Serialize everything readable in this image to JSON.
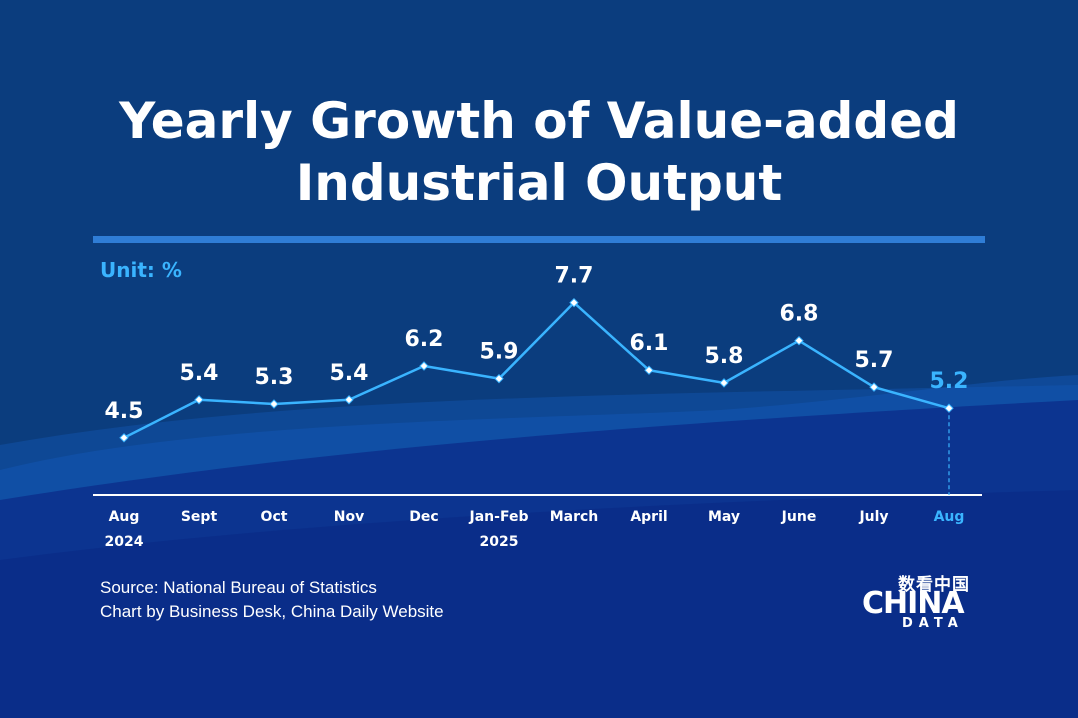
{
  "colors": {
    "background": "#0b3d7e",
    "line": "#3ab4ff",
    "highlight": "#3ab4ff",
    "text": "#ffffff"
  },
  "title_lines": [
    "Yearly Growth of Value-added",
    "Industrial Output"
  ],
  "footer": {
    "source": "Source: National Bureau of Statistics",
    "credit": "Chart by Business Desk, China Daily Website"
  },
  "logo": {
    "chinese": "数看中国",
    "main": "CHINA",
    "sub": "DATA"
  },
  "chart_data": {
    "type": "line",
    "title": "Yearly Growth of Value-added Industrial Output",
    "unit_label": "Unit: %",
    "categories": [
      [
        "Aug",
        "2024"
      ],
      [
        "Sept"
      ],
      [
        "Oct"
      ],
      [
        "Nov"
      ],
      [
        "Dec"
      ],
      [
        "Jan-Feb",
        "2025"
      ],
      [
        "March"
      ],
      [
        "April"
      ],
      [
        "May"
      ],
      [
        "June"
      ],
      [
        "July"
      ],
      [
        "Aug"
      ]
    ],
    "values": [
      4.5,
      5.4,
      5.3,
      5.4,
      6.2,
      5.9,
      7.7,
      6.1,
      5.8,
      6.8,
      5.7,
      5.2
    ],
    "value_labels": [
      "4.5",
      "5.4",
      "5.3",
      "5.4",
      "6.2",
      "5.9",
      "7.7",
      "6.1",
      "5.8",
      "6.8",
      "5.7",
      "5.2"
    ],
    "highlight_index": 11,
    "ylim": [
      3.5,
      8.0
    ],
    "grid": false,
    "legend": "none"
  }
}
